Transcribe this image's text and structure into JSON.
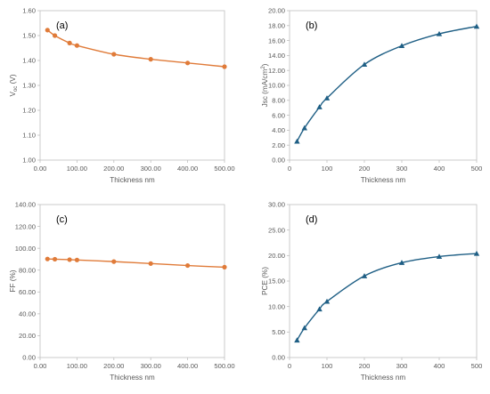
{
  "chart_data": [
    {
      "id": "a",
      "type": "line",
      "panel_label": "(a)",
      "xlabel": "Thickness nm",
      "ylabel_main": "V",
      "ylabel_sub": "oc",
      "ylabel_unit": " (V)",
      "xlim": [
        0,
        500
      ],
      "ylim": [
        1.0,
        1.6
      ],
      "xticks": [
        0,
        100,
        200,
        300,
        400,
        500
      ],
      "xtick_labels": [
        "0.00",
        "100.00",
        "200.00",
        "300.00",
        "400.00",
        "500.00"
      ],
      "yticks": [
        1.0,
        1.1,
        1.2,
        1.3,
        1.4,
        1.5,
        1.6
      ],
      "ytick_labels": [
        "1.00",
        "1.10",
        "1.20",
        "1.30",
        "1.40",
        "1.50",
        "1.60"
      ],
      "marker": "circle",
      "color": "#E07B39",
      "series": [
        {
          "x": [
            20,
            40,
            80,
            100,
            200,
            300,
            400,
            500
          ],
          "y": [
            1.522,
            1.5,
            1.47,
            1.46,
            1.425,
            1.405,
            1.39,
            1.375
          ]
        }
      ],
      "grid": false
    },
    {
      "id": "b",
      "type": "line",
      "panel_label": "(b)",
      "xlabel": "Thickness nm",
      "ylabel_main": "Jsc (mA/cm",
      "ylabel_sup": "2",
      "ylabel_tail": ")",
      "xlim": [
        0,
        500
      ],
      "ylim": [
        0,
        20
      ],
      "xticks": [
        0,
        100,
        200,
        300,
        400,
        500
      ],
      "xtick_labels": [
        "0",
        "100",
        "200",
        "300",
        "400",
        "500"
      ],
      "yticks": [
        0,
        2,
        4,
        6,
        8,
        10,
        12,
        14,
        16,
        18,
        20
      ],
      "ytick_labels": [
        "0.00",
        "2.00",
        "4.00",
        "6.00",
        "8.00",
        "10.00",
        "12.00",
        "14.00",
        "16.00",
        "18.00",
        "20.00"
      ],
      "marker": "triangle",
      "color": "#1F5F85",
      "series": [
        {
          "x": [
            20,
            40,
            80,
            100,
            200,
            300,
            400,
            500
          ],
          "y": [
            2.5,
            4.3,
            7.1,
            8.3,
            12.8,
            15.3,
            16.9,
            17.9
          ]
        }
      ],
      "grid": false
    },
    {
      "id": "c",
      "type": "line",
      "panel_label": "(c)",
      "xlabel": "Thickness nm",
      "ylabel_main": "FF (%)",
      "xlim": [
        0,
        500
      ],
      "ylim": [
        0,
        140
      ],
      "xticks": [
        0,
        100,
        200,
        300,
        400,
        500
      ],
      "xtick_labels": [
        "0.00",
        "100.00",
        "200.00",
        "300.00",
        "400.00",
        "500.00"
      ],
      "yticks": [
        0,
        20,
        40,
        60,
        80,
        100,
        120,
        140
      ],
      "ytick_labels": [
        "0.00",
        "20.00",
        "40.00",
        "60.00",
        "80.00",
        "100.00",
        "120.00",
        "140.00"
      ],
      "marker": "circle",
      "color": "#E07B39",
      "series": [
        {
          "x": [
            20,
            40,
            80,
            100,
            200,
            300,
            400,
            500
          ],
          "y": [
            90.2,
            90.0,
            89.6,
            89.3,
            87.8,
            86.0,
            84.2,
            82.7
          ]
        }
      ],
      "grid": false
    },
    {
      "id": "d",
      "type": "line",
      "panel_label": "(d)",
      "xlabel": "Thickness nm",
      "ylabel_main": "PCE (%)",
      "xlim": [
        0,
        500
      ],
      "ylim": [
        0,
        30
      ],
      "xticks": [
        0,
        100,
        200,
        300,
        400,
        500
      ],
      "xtick_labels": [
        "0",
        "100",
        "200",
        "300",
        "400",
        "500"
      ],
      "yticks": [
        0,
        5,
        10,
        15,
        20,
        25,
        30
      ],
      "ytick_labels": [
        "0.00",
        "5.00",
        "10.00",
        "15.00",
        "20.00",
        "25.00",
        "30.00"
      ],
      "marker": "triangle",
      "color": "#1F5F85",
      "series": [
        {
          "x": [
            20,
            40,
            80,
            100,
            200,
            300,
            400,
            500
          ],
          "y": [
            3.4,
            5.8,
            9.5,
            11.0,
            16.0,
            18.6,
            19.8,
            20.4
          ]
        }
      ],
      "grid": false
    }
  ]
}
